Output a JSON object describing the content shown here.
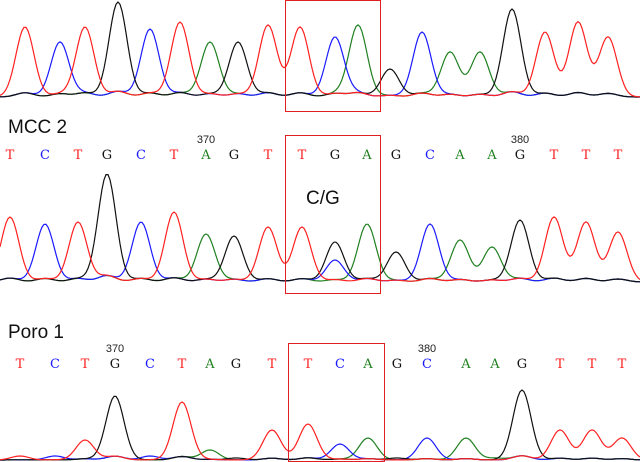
{
  "colors": {
    "A": "#208020",
    "C": "#1a1aff",
    "G": "#111111",
    "T": "#ff2020",
    "highlight": "#e02020"
  },
  "panels": [
    {
      "label": "",
      "sequence": "",
      "peaks": "TCTGCTAGTTCAGCAAGTTT"
    },
    {
      "label": "MCC 2",
      "sequence": "TCTGCTAGTTGAGCAAGTTT",
      "positions": [
        {
          "value": "370",
          "at_base": 6
        },
        {
          "value": "380",
          "at_base": 16
        }
      ],
      "annotation": "C/G"
    },
    {
      "label": "Poro 1",
      "sequence": "TCTGCTAGTTCAGCAAGTTT",
      "positions": [
        {
          "value": "370",
          "at_base": 3
        },
        {
          "value": "380",
          "at_base": 13
        }
      ]
    }
  ]
}
